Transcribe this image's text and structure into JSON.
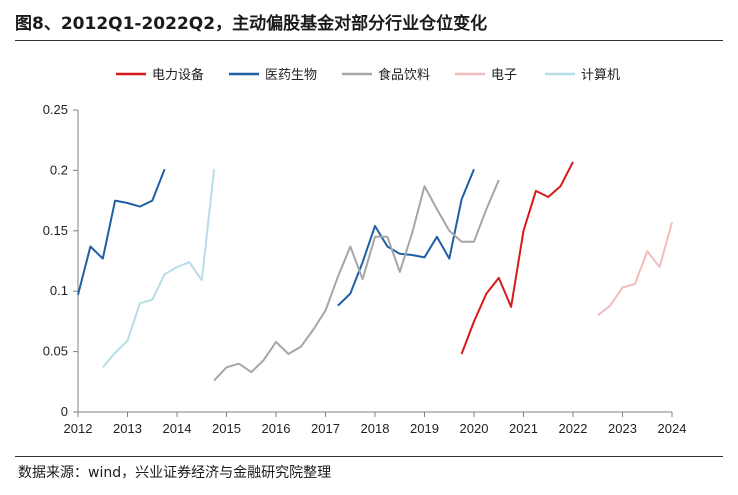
{
  "header": {
    "title": "图8、2012Q1-2022Q2，主动偏股基金对部分行业仓位变化"
  },
  "footer": {
    "source": "数据来源：wind，兴业证券经济与金融研究院整理"
  },
  "chart_data": {
    "type": "line",
    "title": "图8、2012Q1-2022Q2，主动偏股基金对部分行业仓位变化",
    "xlabel": "",
    "ylabel": "",
    "xlim": [
      2012,
      2024
    ],
    "ylim": [
      0,
      0.25
    ],
    "x_ticks": [
      "2012",
      "2013",
      "2014",
      "2015",
      "2016",
      "2017",
      "2018",
      "2019",
      "2020",
      "2021",
      "2022",
      "2023",
      "2024"
    ],
    "y_ticks": [
      "0",
      "0.05",
      "0.1",
      "0.15",
      "0.2",
      "0.25"
    ],
    "grid": false,
    "legend_position": "top",
    "series": [
      {
        "name": "电力设备",
        "color": "#d7191c",
        "points": [
          [
            19.75,
            0.048
          ],
          [
            20.0,
            0.075
          ],
          [
            20.25,
            0.098
          ],
          [
            20.5,
            0.111
          ],
          [
            20.75,
            0.087
          ],
          [
            21.0,
            0.15
          ],
          [
            21.25,
            0.183
          ],
          [
            21.5,
            0.178
          ],
          [
            21.75,
            0.187
          ],
          [
            22.0,
            0.207
          ]
        ]
      },
      {
        "name": "医药生物",
        "color": "#1f5fa5",
        "points": [
          [
            12.0,
            0.097
          ],
          [
            12.25,
            0.137
          ],
          [
            12.5,
            0.127
          ],
          [
            12.75,
            0.175
          ],
          [
            13.0,
            0.173
          ],
          [
            13.25,
            0.17
          ],
          [
            13.5,
            0.175
          ],
          [
            13.75,
            0.201
          ],
          [
            17.25,
            0.088
          ],
          [
            17.5,
            0.098
          ],
          [
            17.75,
            0.124
          ],
          [
            18.0,
            0.154
          ],
          [
            18.25,
            0.137
          ],
          [
            18.5,
            0.131
          ],
          [
            18.75,
            0.13
          ],
          [
            19.0,
            0.128
          ],
          [
            19.25,
            0.145
          ],
          [
            19.5,
            0.127
          ],
          [
            19.75,
            0.176
          ],
          [
            20.0,
            0.201
          ]
        ]
      },
      {
        "name": "食品饮料",
        "color": "#a6a6a6",
        "points": [
          [
            14.75,
            0.026
          ],
          [
            15.0,
            0.037
          ],
          [
            15.25,
            0.04
          ],
          [
            15.5,
            0.033
          ],
          [
            15.75,
            0.043
          ],
          [
            16.0,
            0.058
          ],
          [
            16.25,
            0.048
          ],
          [
            16.5,
            0.054
          ],
          [
            16.75,
            0.068
          ],
          [
            17.0,
            0.084
          ],
          [
            17.25,
            0.112
          ],
          [
            17.5,
            0.137
          ],
          [
            17.75,
            0.11
          ],
          [
            18.0,
            0.145
          ],
          [
            18.25,
            0.145
          ],
          [
            18.5,
            0.116
          ],
          [
            18.75,
            0.148
          ],
          [
            19.0,
            0.187
          ],
          [
            19.25,
            0.168
          ],
          [
            19.5,
            0.15
          ],
          [
            19.75,
            0.141
          ],
          [
            20.0,
            0.141
          ],
          [
            20.25,
            0.168
          ],
          [
            20.5,
            0.192
          ]
        ]
      },
      {
        "name": "电子",
        "color": "#f2bcbc",
        "points": [
          [
            22.5,
            0.08
          ],
          [
            22.75,
            0.088
          ],
          [
            23.0,
            0.103
          ],
          [
            23.25,
            0.106
          ],
          [
            23.5,
            0.133
          ],
          [
            23.75,
            0.12
          ],
          [
            24.0,
            0.157
          ]
        ]
      },
      {
        "name": "计算机",
        "color": "#b7dde8",
        "points": [
          [
            12.5,
            0.037
          ],
          [
            12.75,
            0.049
          ],
          [
            13.0,
            0.059
          ],
          [
            13.25,
            0.09
          ],
          [
            13.5,
            0.093
          ],
          [
            13.75,
            0.114
          ],
          [
            14.0,
            0.12
          ],
          [
            14.25,
            0.124
          ],
          [
            14.5,
            0.109
          ],
          [
            14.75,
            0.201
          ]
        ]
      }
    ]
  }
}
